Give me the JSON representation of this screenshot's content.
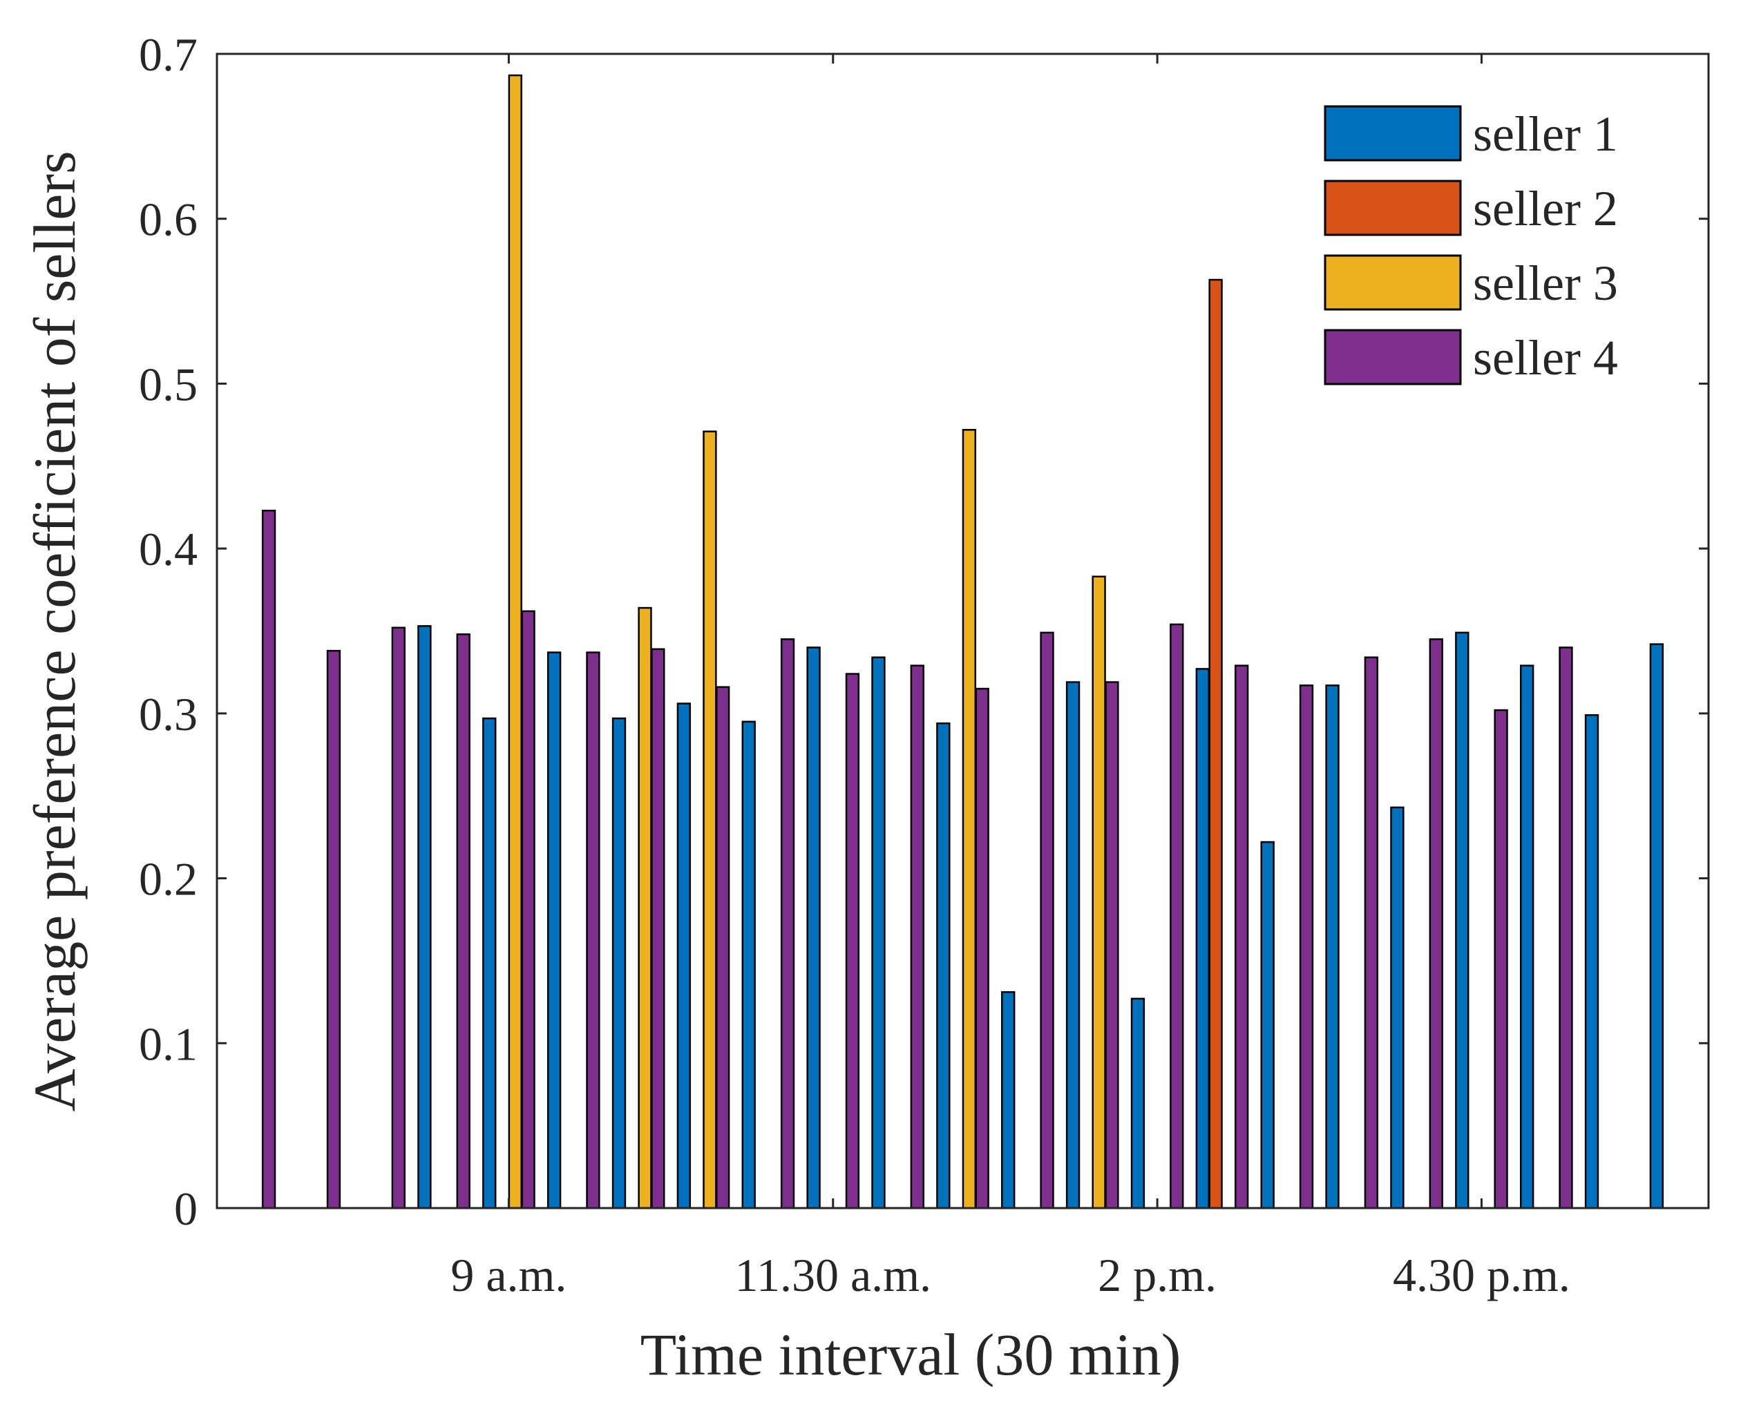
{
  "chart_data": {
    "type": "bar",
    "title": "",
    "xlabel": "Time interval (30 min)",
    "ylabel": "Average preference coefficient of sellers",
    "ylim": [
      0,
      0.7
    ],
    "xlim": [
      0.5,
      23.5
    ],
    "yticks": [
      {
        "value": 0,
        "label": "0"
      },
      {
        "value": 0.1,
        "label": "0.1"
      },
      {
        "value": 0.2,
        "label": "0.2"
      },
      {
        "value": 0.3,
        "label": "0.3"
      },
      {
        "value": 0.4,
        "label": "0.4"
      },
      {
        "value": 0.5,
        "label": "0.5"
      },
      {
        "value": 0.6,
        "label": "0.6"
      },
      {
        "value": 0.7,
        "label": "0.7"
      }
    ],
    "xticks": [
      {
        "value": 5,
        "label": "9 a.m."
      },
      {
        "value": 10,
        "label": "11.30 a.m."
      },
      {
        "value": 15,
        "label": "2 p.m."
      },
      {
        "value": 20,
        "label": "4.30 p.m."
      }
    ],
    "legend_position": "top-right",
    "x": [
      1,
      2,
      3,
      4,
      5,
      6,
      7,
      8,
      9,
      10,
      11,
      12,
      13,
      14,
      15,
      16,
      17,
      18,
      19,
      20,
      21,
      22,
      23
    ],
    "series": [
      {
        "name": "seller 1",
        "color": "#0072BD",
        "values": [
          0,
          0,
          0,
          0.353,
          0.297,
          0.337,
          0.297,
          0.306,
          0.295,
          0.34,
          0.334,
          0.294,
          0.131,
          0.319,
          0.127,
          0.327,
          0.222,
          0.317,
          0.243,
          0.349,
          0.329,
          0.299,
          0.342
        ]
      },
      {
        "name": "seller 2",
        "color": "#D95319",
        "values": [
          0,
          0,
          0,
          0,
          0,
          0,
          0,
          0,
          0,
          0,
          0,
          0,
          0,
          0,
          0,
          0.563,
          0,
          0,
          0,
          0,
          0,
          0,
          0
        ]
      },
      {
        "name": "seller 3",
        "color": "#EDB120",
        "values": [
          0,
          0,
          0,
          0,
          0.687,
          0,
          0.364,
          0.471,
          0,
          0,
          0,
          0.472,
          0,
          0.383,
          0,
          0,
          0,
          0,
          0,
          0,
          0,
          0,
          0
        ]
      },
      {
        "name": "seller 4",
        "color": "#7E2F8E",
        "values": [
          0.423,
          0.338,
          0.352,
          0.348,
          0.362,
          0.337,
          0.339,
          0.316,
          0.345,
          0.324,
          0.329,
          0.315,
          0.349,
          0.319,
          0.354,
          0.329,
          0.317,
          0.334,
          0.345,
          0.302,
          0.34,
          0,
          0
        ]
      }
    ]
  }
}
